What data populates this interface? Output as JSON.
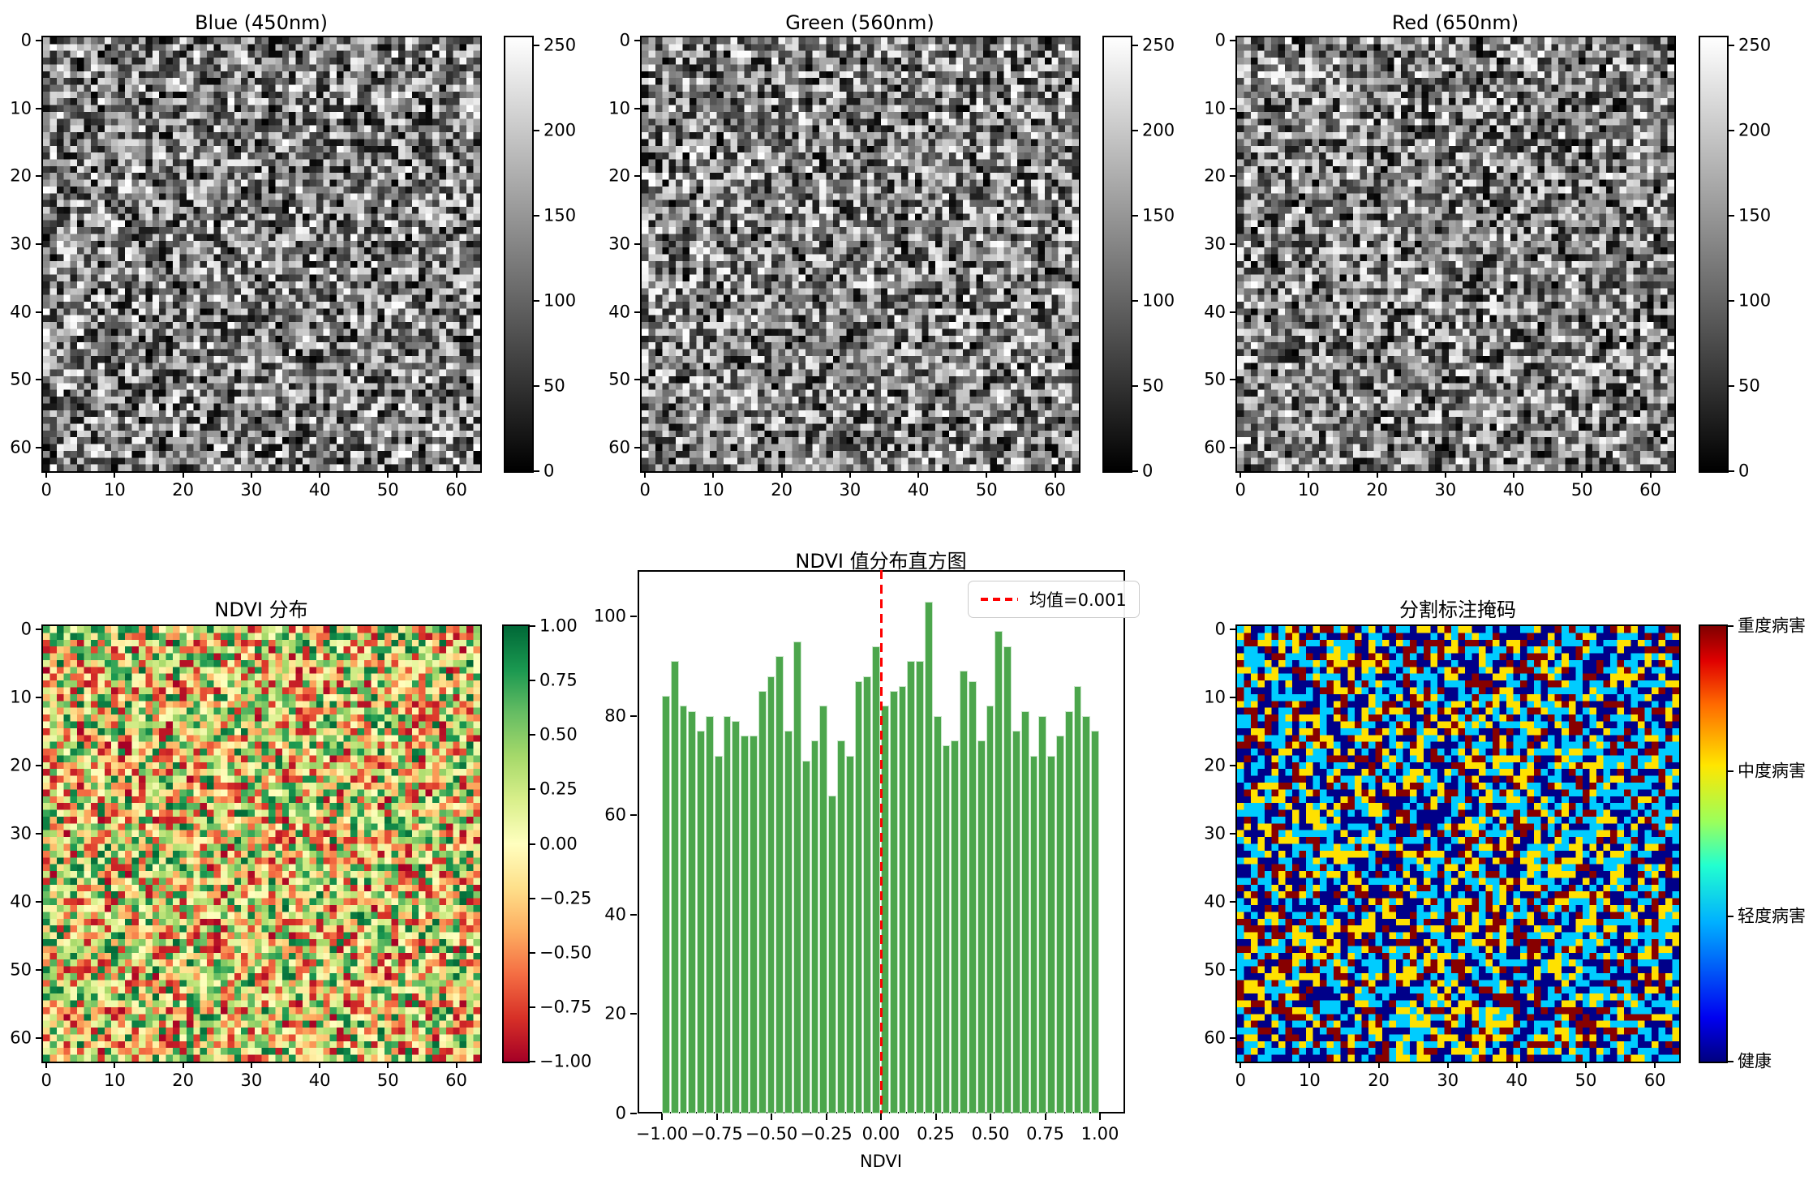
{
  "chart_data": [
    {
      "type": "heatmap",
      "title": "Blue (450nm)",
      "grid": [
        64,
        64
      ],
      "value_range": [
        0,
        255
      ],
      "colormap": "gray",
      "values": "uniform random grayscale noise 0-255",
      "seed": 101,
      "xticks": [
        0,
        10,
        20,
        30,
        40,
        50,
        60
      ],
      "yticks": [
        0,
        10,
        20,
        30,
        40,
        50,
        60
      ],
      "colorbar_ticks": [
        0,
        50,
        100,
        150,
        200,
        250
      ]
    },
    {
      "type": "heatmap",
      "title": "Green (560nm)",
      "grid": [
        64,
        64
      ],
      "value_range": [
        0,
        255
      ],
      "colormap": "gray",
      "values": "uniform random grayscale noise 0-255",
      "seed": 202,
      "xticks": [
        0,
        10,
        20,
        30,
        40,
        50,
        60
      ],
      "yticks": [
        0,
        10,
        20,
        30,
        40,
        50,
        60
      ],
      "colorbar_ticks": [
        0,
        50,
        100,
        150,
        200,
        250
      ]
    },
    {
      "type": "heatmap",
      "title": "Red (650nm)",
      "grid": [
        64,
        64
      ],
      "value_range": [
        0,
        255
      ],
      "colormap": "gray",
      "values": "uniform random grayscale noise 0-255",
      "seed": 303,
      "xticks": [
        0,
        10,
        20,
        30,
        40,
        50,
        60
      ],
      "yticks": [
        0,
        10,
        20,
        30,
        40,
        50,
        60
      ],
      "colorbar_ticks": [
        0,
        50,
        100,
        150,
        200,
        250
      ]
    },
    {
      "type": "heatmap",
      "title": "NDVI 分布",
      "grid": [
        64,
        64
      ],
      "value_range": [
        -1,
        1
      ],
      "colormap": "RdYlGn",
      "values": "uniform random NDVI values in [-1, 1]",
      "seed": 404,
      "xticks": [
        0,
        10,
        20,
        30,
        40,
        50,
        60
      ],
      "yticks": [
        0,
        10,
        20,
        30,
        40,
        50,
        60
      ],
      "colorbar_tick_labels": [
        "1.00",
        "0.75",
        "0.50",
        "0.25",
        "0.00",
        "−0.25",
        "−0.50",
        "−0.75",
        "−1.00"
      ]
    },
    {
      "type": "bar",
      "title": "NDVI 值分布直方图",
      "xlabel": "NDVI",
      "bin_start": -1.0,
      "bin_width": 0.04,
      "values": [
        84,
        91,
        82,
        81,
        77,
        80,
        72,
        80,
        79,
        76,
        76,
        85,
        88,
        92,
        77,
        95,
        71,
        75,
        82,
        64,
        75,
        72,
        87,
        88,
        94,
        82,
        85,
        86,
        91,
        91,
        103,
        80,
        74,
        75,
        89,
        87,
        75,
        82,
        97,
        94,
        77,
        81,
        72,
        80,
        72,
        76,
        81,
        86,
        80,
        77
      ],
      "total_count": 4096,
      "mean_value": 0.001,
      "legend_label": "均值=0.001",
      "mean_color": "#ff0000",
      "bar_color": "#4ca64c",
      "bar_edge": "#c9e6c9",
      "xticks": [
        -1.0,
        -0.75,
        -0.5,
        -0.25,
        0.0,
        0.25,
        0.5,
        0.75,
        1.0
      ],
      "xtick_labels": [
        "−1.00",
        "−0.75",
        "−0.50",
        "−0.25",
        "0.00",
        "0.25",
        "0.50",
        "0.75",
        "1.00"
      ],
      "yticks": [
        0,
        20,
        40,
        60,
        80,
        100
      ],
      "ylim": [
        0,
        108
      ],
      "legend_position": "upper right",
      "grid": false
    },
    {
      "type": "heatmap",
      "title": "分割标注掩码",
      "grid": [
        64,
        64
      ],
      "colormap": "jet",
      "values": "random 4-class segmentation mask",
      "classes": [
        "健康",
        "轻度病害",
        "中度病害",
        "重度病害"
      ],
      "class_colors": [
        "#000089",
        "#00ccff",
        "#ffe100",
        "#870000"
      ],
      "class_weights": [
        0.3,
        0.3,
        0.22,
        0.18
      ],
      "seed": 505,
      "xticks": [
        0,
        10,
        20,
        30,
        40,
        50,
        60
      ],
      "yticks": [
        0,
        10,
        20,
        30,
        40,
        50,
        60
      ],
      "colorbar_labels_top_to_bottom": [
        "重度病害",
        "中度病害",
        "轻度病害",
        "健康"
      ]
    }
  ]
}
